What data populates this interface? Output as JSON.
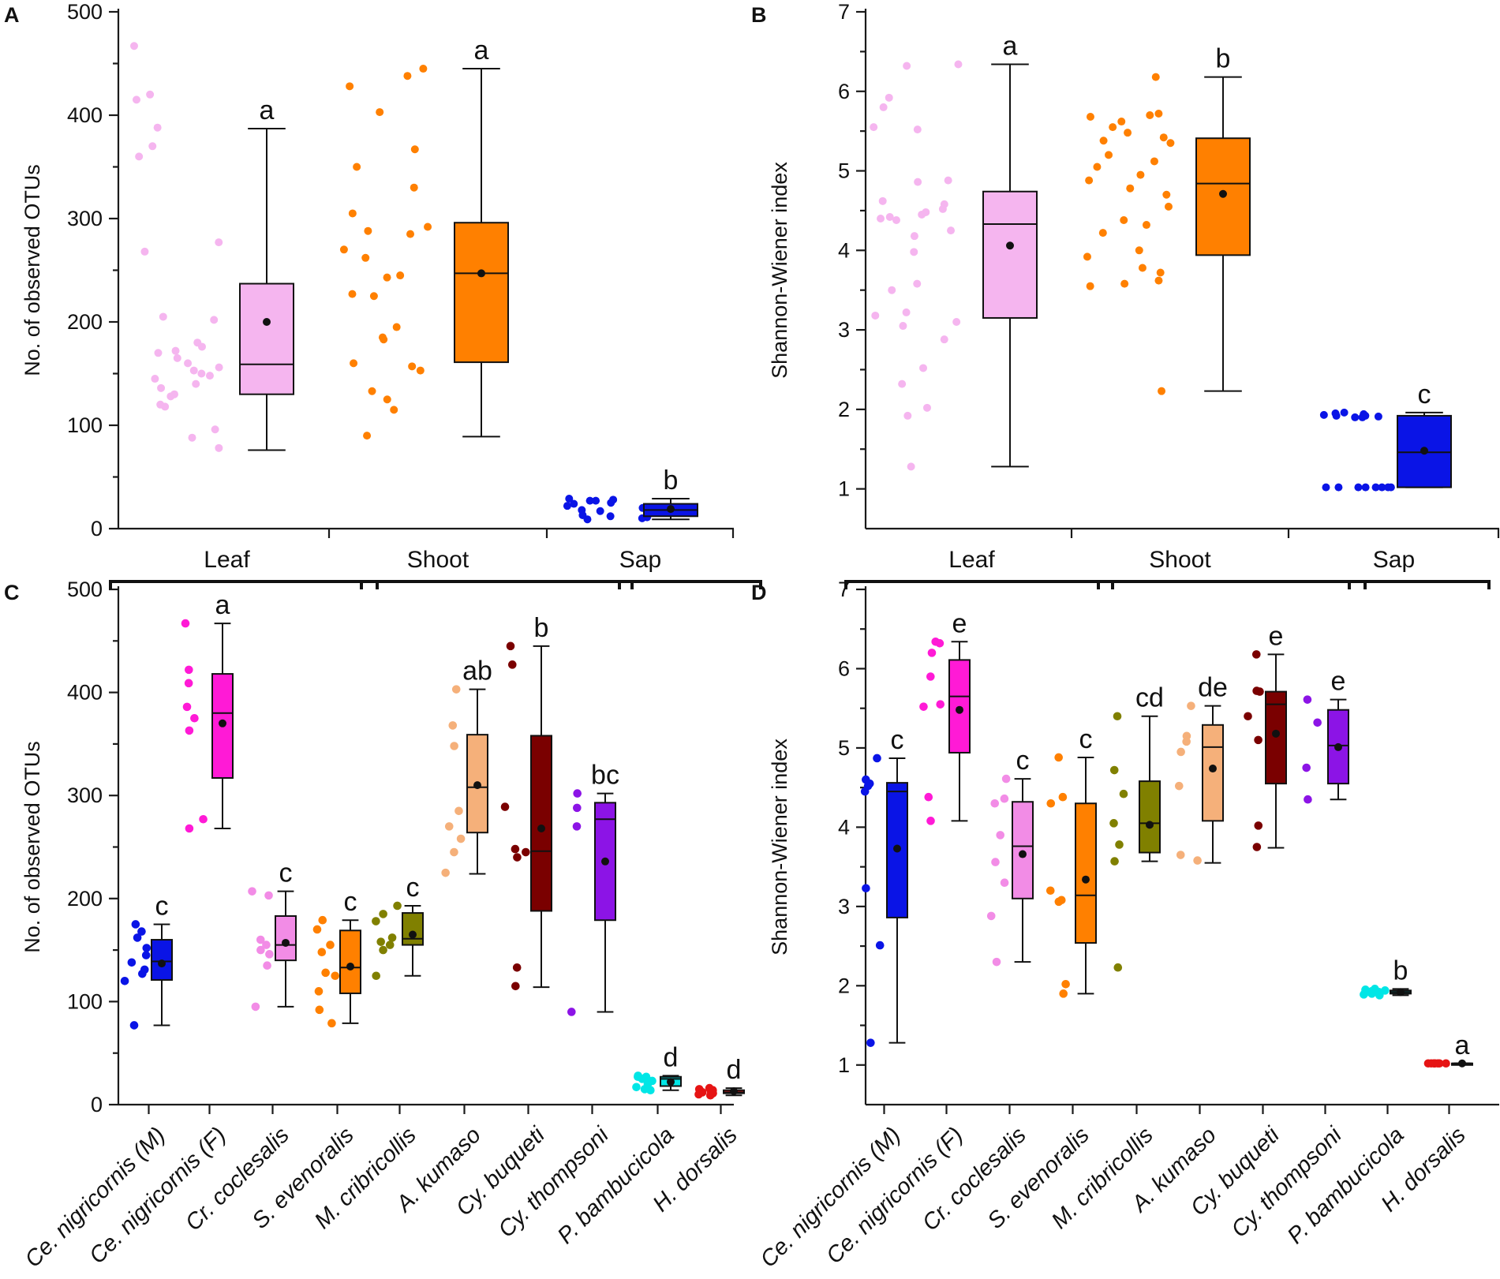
{
  "figure": {
    "background": "#ffffff"
  },
  "chart_data": [
    {
      "panel": "A",
      "type": "box",
      "ylabel": "No. of observed OTUs",
      "xlabel": "",
      "ylim": [
        0,
        500
      ],
      "ytick_values": [
        0,
        100,
        200,
        300,
        400,
        500
      ],
      "ytick_labels": [
        "0",
        "100",
        "200",
        "300",
        "400",
        "500"
      ],
      "categories": [
        "Leaf",
        "Shoot",
        "Sap"
      ],
      "series": [
        {
          "name": "Leaf",
          "color": "#f5b5ef",
          "edge": "#111111",
          "box": {
            "min": 76,
            "q1": 130,
            "median": 159,
            "q3": 237,
            "max": 387,
            "mean": 200
          },
          "letter": "a",
          "points": [
            467,
            420,
            415,
            388,
            370,
            360,
            277,
            268,
            205,
            202,
            180,
            176,
            172,
            170,
            165,
            160,
            156,
            153,
            150,
            148,
            145,
            140,
            136,
            130,
            128,
            120,
            118,
            96,
            88,
            78
          ]
        },
        {
          "name": "Shoot",
          "color": "#ff8000",
          "edge": "#111111",
          "box": {
            "min": 89,
            "q1": 161,
            "median": 247,
            "q3": 296,
            "max": 445,
            "mean": 247
          },
          "letter": "a",
          "points": [
            445,
            438,
            428,
            403,
            367,
            350,
            330,
            305,
            292,
            288,
            285,
            270,
            262,
            245,
            243,
            227,
            225,
            195,
            185,
            183,
            160,
            157,
            153,
            133,
            125,
            115,
            90
          ]
        },
        {
          "name": "Sap",
          "color": "#0a14e6",
          "edge": "#111111",
          "box": {
            "min": 9,
            "q1": 12,
            "median": 18,
            "q3": 24,
            "max": 29,
            "mean": 19
          },
          "letter": "b",
          "points": [
            29,
            28,
            27,
            27,
            25,
            24,
            22,
            20,
            18,
            17,
            15,
            13,
            12,
            11,
            10,
            9
          ]
        }
      ]
    },
    {
      "panel": "B",
      "type": "box",
      "ylabel": "Shannon-Wiener index",
      "xlabel": "",
      "ylim": [
        0.5,
        7
      ],
      "ytick_values": [
        1,
        2,
        3,
        4,
        5,
        6,
        7
      ],
      "ytick_labels": [
        "1",
        "2",
        "3",
        "4",
        "5",
        "6",
        "7"
      ],
      "categories": [
        "Leaf",
        "Shoot",
        "Sap"
      ],
      "series": [
        {
          "name": "Leaf",
          "color": "#f5b5ef",
          "edge": "#111111",
          "box": {
            "min": 1.28,
            "q1": 3.15,
            "median": 4.33,
            "q3": 4.74,
            "max": 6.34,
            "mean": 4.06
          },
          "letter": "a",
          "points": [
            6.34,
            6.32,
            5.92,
            5.8,
            5.55,
            5.52,
            4.88,
            4.86,
            4.62,
            4.58,
            4.52,
            4.48,
            4.45,
            4.42,
            4.4,
            4.38,
            4.25,
            4.18,
            3.98,
            3.58,
            3.5,
            3.22,
            3.18,
            3.1,
            3.05,
            2.88,
            2.52,
            2.32,
            2.02,
            1.92,
            1.28
          ]
        },
        {
          "name": "Shoot",
          "color": "#ff8000",
          "edge": "#111111",
          "box": {
            "min": 2.23,
            "q1": 3.94,
            "median": 4.84,
            "q3": 5.41,
            "max": 6.18,
            "mean": 4.71
          },
          "letter": "b",
          "points": [
            6.18,
            5.72,
            5.7,
            5.68,
            5.62,
            5.55,
            5.48,
            5.42,
            5.38,
            5.35,
            5.2,
            5.12,
            5.05,
            4.95,
            4.88,
            4.78,
            4.7,
            4.55,
            4.38,
            4.32,
            4.22,
            4.0,
            3.92,
            3.78,
            3.72,
            3.62,
            3.58,
            3.55,
            2.23
          ]
        },
        {
          "name": "Sap",
          "color": "#0a14e6",
          "edge": "#111111",
          "box": {
            "min": 1.02,
            "q1": 1.02,
            "median": 1.46,
            "q3": 1.92,
            "max": 1.96,
            "mean": 1.48
          },
          "letter": "c",
          "points": [
            1.96,
            1.95,
            1.94,
            1.93,
            1.92,
            1.92,
            1.91,
            1.9,
            1.9,
            1.02,
            1.02,
            1.02,
            1.02,
            1.02,
            1.02,
            1.02,
            1.02
          ]
        }
      ]
    },
    {
      "panel": "C",
      "type": "box",
      "ylabel": "No. of observed OTUs",
      "xlabel": "",
      "ylim": [
        0,
        500
      ],
      "ytick_values": [
        0,
        100,
        200,
        300,
        400,
        500
      ],
      "ytick_labels": [
        "0",
        "100",
        "200",
        "300",
        "400",
        "500"
      ],
      "groups": [
        {
          "label": "Leaf",
          "from": 0,
          "to": 3
        },
        {
          "label": "Shoot",
          "from": 4,
          "to": 7
        },
        {
          "label": "Sap",
          "from": 8,
          "to": 9
        }
      ],
      "categories": [
        "Ce. nigricornis (M)",
        "Ce. nigricornis (F)",
        "Cr. coclesalis",
        "S. evenoralis",
        "M. cribricollis",
        "A. kumaso",
        "Cy. buqueti",
        "Cy. thompsoni",
        "P. bambucicola",
        "H. dorsalis"
      ],
      "series": [
        {
          "name": "Ce. nigricornis (M)",
          "color": "#0a14e6",
          "box": {
            "min": 77,
            "q1": 121,
            "median": 139,
            "q3": 160,
            "max": 175,
            "mean": 137
          },
          "letter": "c",
          "points": [
            175,
            168,
            162,
            152,
            145,
            138,
            131,
            127,
            120,
            77
          ]
        },
        {
          "name": "Ce. nigricornis (F)",
          "color": "#ff1ad6",
          "box": {
            "min": 268,
            "q1": 317,
            "median": 380,
            "q3": 418,
            "max": 467,
            "mean": 370
          },
          "letter": "a",
          "points": [
            467,
            422,
            409,
            386,
            375,
            363,
            277,
            268
          ]
        },
        {
          "name": "Cr. coclesalis",
          "color": "#f28ce6",
          "box": {
            "min": 95,
            "q1": 140,
            "median": 155,
            "q3": 183,
            "max": 207,
            "mean": 157
          },
          "letter": "c",
          "points": [
            207,
            203,
            160,
            155,
            150,
            146,
            135,
            95
          ]
        },
        {
          "name": "S. evenoralis",
          "color": "#ff8000",
          "box": {
            "min": 79,
            "q1": 108,
            "median": 133,
            "q3": 169,
            "max": 179,
            "mean": 134
          },
          "letter": "c",
          "points": [
            179,
            170,
            155,
            148,
            128,
            125,
            110,
            92,
            79
          ]
        },
        {
          "name": "M. cribricollis",
          "color": "#808000",
          "box": {
            "min": 125,
            "q1": 155,
            "median": 161,
            "q3": 186,
            "max": 193,
            "mean": 165
          },
          "letter": "c",
          "points": [
            193,
            185,
            178,
            162,
            158,
            155,
            150,
            125
          ]
        },
        {
          "name": "A. kumaso",
          "color": "#f5b07a",
          "box": {
            "min": 224,
            "q1": 264,
            "median": 308,
            "q3": 359,
            "max": 403,
            "mean": 310
          },
          "letter": "ab",
          "points": [
            403,
            368,
            348,
            285,
            270,
            258,
            245,
            225
          ]
        },
        {
          "name": "Cy. buqueti",
          "color": "#7a0000",
          "box": {
            "min": 114,
            "q1": 188,
            "median": 246,
            "q3": 358,
            "max": 445,
            "mean": 268
          },
          "letter": "b",
          "points": [
            445,
            427,
            289,
            248,
            245,
            240,
            133,
            115
          ]
        },
        {
          "name": "Cy. thompsoni",
          "color": "#8c14e6",
          "box": {
            "min": 90,
            "q1": 179,
            "median": 277,
            "q3": 293,
            "max": 302,
            "mean": 236
          },
          "letter": "bc",
          "points": [
            302,
            288,
            270,
            90
          ]
        },
        {
          "name": "P. bambucicola",
          "color": "#00e6e6",
          "box": {
            "min": 14,
            "q1": 18,
            "median": 25,
            "q3": 27,
            "max": 28,
            "mean": 22
          },
          "letter": "d",
          "points": [
            28,
            27,
            27,
            25,
            23,
            20,
            17,
            15,
            14
          ]
        },
        {
          "name": "H. dorsalis",
          "color": "#e61414",
          "box": {
            "min": 9,
            "q1": 11,
            "median": 12,
            "q3": 14,
            "max": 16,
            "mean": 13
          },
          "letter": "d",
          "points": [
            16,
            15,
            14,
            14,
            13,
            12,
            12,
            11,
            10,
            9
          ]
        }
      ]
    },
    {
      "panel": "D",
      "type": "box",
      "ylabel": "Shannon-Wiener index",
      "xlabel": "",
      "ylim": [
        0.5,
        7
      ],
      "ytick_values": [
        1,
        2,
        3,
        4,
        5,
        6,
        7
      ],
      "ytick_labels": [
        "1",
        "2",
        "3",
        "4",
        "5",
        "6",
        "7"
      ],
      "groups": [
        {
          "label": "Leaf",
          "from": 0,
          "to": 3
        },
        {
          "label": "Shoot",
          "from": 4,
          "to": 7
        },
        {
          "label": "Sap",
          "from": 8,
          "to": 9
        }
      ],
      "categories": [
        "Ce. nigricornis (M)",
        "Ce. nigricornis (F)",
        "Cr. coclesalis",
        "S. evenoralis",
        "M. cribricollis",
        "A. kumaso",
        "Cy. buqueti",
        "Cy. thompsoni",
        "P. bambucicola",
        "H. dorsalis"
      ],
      "series": [
        {
          "name": "Ce. nigricornis (M)",
          "color": "#0a14e6",
          "box": {
            "min": 1.28,
            "q1": 2.86,
            "median": 4.45,
            "q3": 4.56,
            "max": 4.87,
            "mean": 3.73
          },
          "letter": "c",
          "points": [
            4.87,
            4.6,
            4.55,
            4.52,
            4.45,
            3.23,
            2.51,
            1.28
          ]
        },
        {
          "name": "Ce. nigricornis (F)",
          "color": "#ff1ad6",
          "box": {
            "min": 4.08,
            "q1": 4.94,
            "median": 5.65,
            "q3": 6.11,
            "max": 6.34,
            "mean": 5.48
          },
          "letter": "e",
          "points": [
            6.34,
            6.32,
            6.2,
            5.9,
            5.55,
            5.52,
            4.38,
            4.08
          ]
        },
        {
          "name": "Cr. coclesalis",
          "color": "#f28ce6",
          "box": {
            "min": 2.3,
            "q1": 3.1,
            "median": 3.76,
            "q3": 4.32,
            "max": 4.61,
            "mean": 3.66
          },
          "letter": "c",
          "points": [
            4.61,
            4.36,
            4.3,
            3.9,
            3.56,
            3.3,
            2.88,
            2.3
          ]
        },
        {
          "name": "S. evenoralis",
          "color": "#ff8000",
          "box": {
            "min": 1.9,
            "q1": 2.54,
            "median": 3.14,
            "q3": 4.3,
            "max": 4.88,
            "mean": 3.34
          },
          "letter": "c",
          "points": [
            4.88,
            4.38,
            4.3,
            3.2,
            3.08,
            3.06,
            2.02,
            1.9
          ]
        },
        {
          "name": "M. cribricollis",
          "color": "#808000",
          "box": {
            "min": 3.57,
            "q1": 3.68,
            "median": 4.05,
            "q3": 4.58,
            "max": 5.4,
            "mean": 4.03
          },
          "letter": "cd",
          "points": [
            5.4,
            4.72,
            4.42,
            4.05,
            3.78,
            3.57,
            2.23
          ]
        },
        {
          "name": "A. kumaso",
          "color": "#f5b07a",
          "box": {
            "min": 3.55,
            "q1": 4.08,
            "median": 5.01,
            "q3": 5.29,
            "max": 5.53,
            "mean": 4.74
          },
          "letter": "de",
          "points": [
            5.53,
            5.15,
            5.08,
            4.95,
            4.52,
            3.65,
            3.58
          ]
        },
        {
          "name": "Cy. buqueti",
          "color": "#7a0000",
          "box": {
            "min": 3.74,
            "q1": 4.55,
            "median": 5.55,
            "q3": 5.71,
            "max": 6.18,
            "mean": 5.18
          },
          "letter": "e",
          "points": [
            6.18,
            5.72,
            5.71,
            5.4,
            5.1,
            4.02,
            3.75
          ]
        },
        {
          "name": "Cy. thompsoni",
          "color": "#8c14e6",
          "box": {
            "min": 4.35,
            "q1": 4.55,
            "median": 5.03,
            "q3": 5.48,
            "max": 5.61,
            "mean": 5.01
          },
          "letter": "e",
          "points": [
            5.61,
            5.32,
            4.75,
            4.35
          ]
        },
        {
          "name": "P. bambucicola",
          "color": "#00e6e6",
          "box": {
            "min": 1.88,
            "q1": 1.9,
            "median": 1.92,
            "q3": 1.94,
            "max": 1.96,
            "mean": 1.92
          },
          "letter": "b",
          "points": [
            1.96,
            1.95,
            1.94,
            1.93,
            1.92,
            1.91,
            1.9,
            1.89,
            1.88
          ]
        },
        {
          "name": "H. dorsalis",
          "color": "#e61414",
          "box": {
            "min": 1.02,
            "q1": 1.02,
            "median": 1.02,
            "q3": 1.02,
            "max": 1.02,
            "mean": 1.02
          },
          "letter": "a",
          "points": [
            1.02,
            1.02,
            1.02,
            1.02,
            1.02,
            1.02,
            1.02,
            1.02
          ]
        }
      ]
    }
  ]
}
